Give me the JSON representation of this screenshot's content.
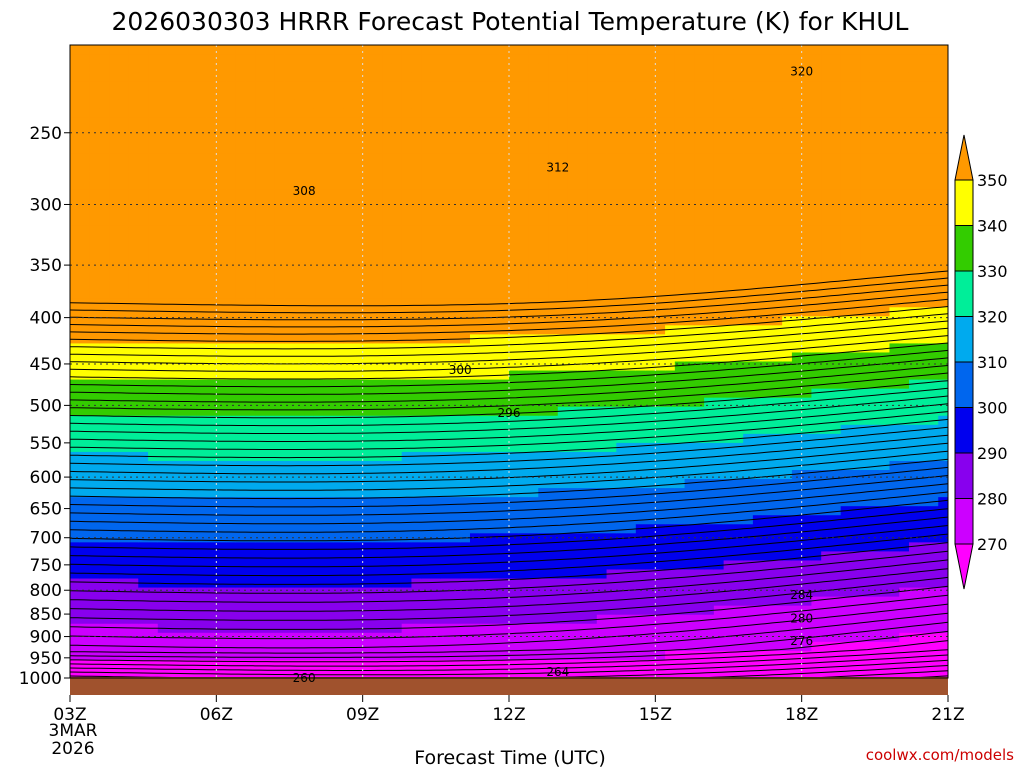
{
  "chart_data": {
    "type": "heatmap",
    "title": "2026030303 HRRR Forecast Potential Temperature (K) for KHUL",
    "xlabel": "Forecast Time (UTC)",
    "ylabel": "",
    "x_ticks": [
      "03Z",
      "06Z",
      "09Z",
      "12Z",
      "15Z",
      "18Z",
      "21Z"
    ],
    "x_date_line1": "3MAR",
    "x_date_line2": "2026",
    "y_ticks": [
      250,
      300,
      350,
      400,
      450,
      500,
      550,
      600,
      650,
      700,
      750,
      800,
      850,
      900,
      950,
      1000
    ],
    "ylim": [
      1000,
      200
    ],
    "y_scale": "log",
    "grid": true,
    "colorbar": {
      "levels": [
        270,
        280,
        290,
        300,
        310,
        320,
        330,
        340,
        350
      ],
      "colors": [
        "#ff00ff",
        "#cc00ff",
        "#8800ee",
        "#0000ee",
        "#0066ee",
        "#00aaee",
        "#00ee99",
        "#33cc00",
        "#ffff00",
        "#ff9900"
      ]
    },
    "contour_labels": [
      {
        "text": "320",
        "time": 18.0,
        "p": 214
      },
      {
        "text": "312",
        "time": 13.0,
        "p": 273
      },
      {
        "text": "308",
        "time": 7.8,
        "p": 290
      },
      {
        "text": "300",
        "time": 11.0,
        "p": 457
      },
      {
        "text": "296",
        "time": 12.0,
        "p": 510
      },
      {
        "text": "284",
        "time": 18.0,
        "p": 810
      },
      {
        "text": "280",
        "time": 18.0,
        "p": 860
      },
      {
        "text": "276",
        "time": 18.0,
        "p": 910
      },
      {
        "text": "264",
        "time": 13.0,
        "p": 985
      },
      {
        "text": "260",
        "time": 7.8,
        "p": 1000
      }
    ],
    "ground_color": "#a0522d",
    "credit": "coolwx.com/models"
  }
}
